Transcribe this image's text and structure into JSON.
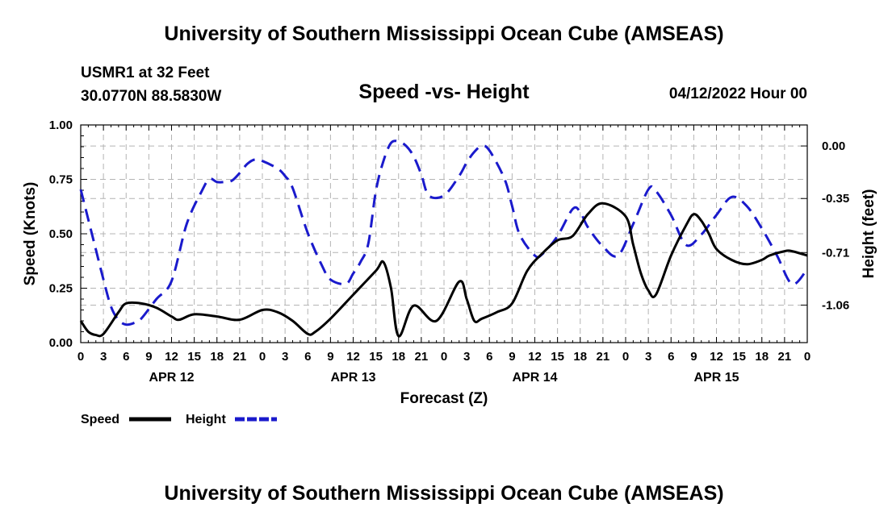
{
  "header": {
    "title": "University of Southern Mississippi Ocean Cube (AMSEAS)",
    "station_name": "USMR1 at 32 Feet",
    "coords": "30.0770N  88.5830W",
    "subtitle": "Speed -vs- Height",
    "datetime": "04/12/2022 Hour 00"
  },
  "footer": {
    "title": "University of Southern Mississippi Ocean Cube (AMSEAS)"
  },
  "colors": {
    "speed": "#000000",
    "height": "#1a1acc",
    "grid": "#b4b4b4"
  },
  "chart_data": {
    "type": "line",
    "xlabel": "Forecast (Z)",
    "ylabel": "Speed (Knots)",
    "y2label": "Height (feet)",
    "xlim": [
      0,
      96
    ],
    "ylim": [
      0,
      1.0
    ],
    "y2lim": [
      -1.31,
      0.14
    ],
    "grid": true,
    "x_tick_labels": [
      "0",
      "3",
      "6",
      "9",
      "12",
      "15",
      "18",
      "21",
      "0",
      "3",
      "6",
      "9",
      "12",
      "15",
      "18",
      "21",
      "0",
      "3",
      "6",
      "9",
      "12",
      "15",
      "18",
      "21",
      "0",
      "3",
      "6",
      "9",
      "12",
      "15",
      "18",
      "21",
      "0"
    ],
    "day_labels": [
      {
        "x": 12,
        "label": "APR 12"
      },
      {
        "x": 36,
        "label": "APR 13"
      },
      {
        "x": 60,
        "label": "APR 14"
      },
      {
        "x": 84,
        "label": "APR 15"
      }
    ],
    "y_ticks": [
      0,
      0.25,
      0.5,
      0.75,
      1.0
    ],
    "y_tick_labels": [
      "0.00",
      "0.25",
      "0.50",
      "0.75",
      "1.00"
    ],
    "y2_ticks": [
      0.0,
      -0.35,
      -0.71,
      -1.06
    ],
    "y2_tick_labels": [
      "0.00",
      "-0.35",
      "-0.71",
      "-1.06"
    ],
    "legend": [
      {
        "name": "Speed",
        "style": "solid"
      },
      {
        "name": "Height",
        "style": "dashed"
      }
    ],
    "series": [
      {
        "name": "Speed",
        "axis": "left",
        "x": [
          0,
          1,
          2,
          3,
          5,
          6,
          8,
          10,
          12,
          13,
          15,
          18,
          21,
          24,
          26,
          28,
          30,
          31,
          33,
          36,
          39,
          40,
          41,
          42,
          44,
          47,
          50,
          51,
          52,
          53,
          55,
          57,
          59,
          61,
          63,
          65,
          67,
          69,
          72,
          73,
          74,
          75,
          76,
          78,
          80,
          81,
          82,
          83,
          84,
          86,
          88,
          90,
          91,
          93,
          94,
          96
        ],
        "values": [
          0.1,
          0.05,
          0.035,
          0.04,
          0.14,
          0.18,
          0.18,
          0.16,
          0.12,
          0.105,
          0.13,
          0.12,
          0.105,
          0.15,
          0.14,
          0.1,
          0.04,
          0.05,
          0.11,
          0.22,
          0.33,
          0.37,
          0.25,
          0.03,
          0.17,
          0.1,
          0.28,
          0.2,
          0.1,
          0.11,
          0.14,
          0.18,
          0.33,
          0.41,
          0.47,
          0.49,
          0.59,
          0.64,
          0.58,
          0.45,
          0.32,
          0.24,
          0.22,
          0.4,
          0.54,
          0.59,
          0.56,
          0.5,
          0.43,
          0.38,
          0.36,
          0.38,
          0.4,
          0.42,
          0.42,
          0.4
        ]
      },
      {
        "name": "Height",
        "axis": "right",
        "x": [
          0,
          1,
          2,
          3,
          4,
          5,
          6,
          7,
          8,
          10,
          12,
          14,
          16,
          17,
          18,
          19,
          20,
          21,
          22,
          23,
          24,
          26,
          27,
          28,
          30,
          32,
          33,
          35,
          36,
          37,
          38,
          39,
          40,
          41,
          42,
          43,
          44,
          45,
          46,
          48,
          50,
          51,
          52,
          53,
          54,
          56,
          57,
          58,
          60,
          61,
          63,
          65,
          66,
          67,
          69,
          71,
          73,
          75,
          76,
          78,
          80,
          82,
          84,
          86,
          88,
          90,
          92,
          94,
          96
        ],
        "values": [
          -0.29,
          -0.49,
          -0.69,
          -0.89,
          -1.07,
          -1.16,
          -1.19,
          -1.18,
          -1.15,
          -1.02,
          -0.9,
          -0.52,
          -0.3,
          -0.22,
          -0.24,
          -0.24,
          -0.23,
          -0.18,
          -0.12,
          -0.09,
          -0.1,
          -0.15,
          -0.2,
          -0.28,
          -0.58,
          -0.81,
          -0.89,
          -0.92,
          -0.85,
          -0.77,
          -0.65,
          -0.3,
          -0.1,
          0.02,
          0.03,
          0.0,
          -0.07,
          -0.19,
          -0.33,
          -0.33,
          -0.2,
          -0.11,
          -0.04,
          0.0,
          -0.03,
          -0.22,
          -0.4,
          -0.59,
          -0.73,
          -0.72,
          -0.6,
          -0.42,
          -0.44,
          -0.54,
          -0.67,
          -0.73,
          -0.52,
          -0.29,
          -0.3,
          -0.46,
          -0.66,
          -0.59,
          -0.46,
          -0.34,
          -0.4,
          -0.55,
          -0.73,
          -0.92,
          -0.82
        ]
      }
    ]
  }
}
